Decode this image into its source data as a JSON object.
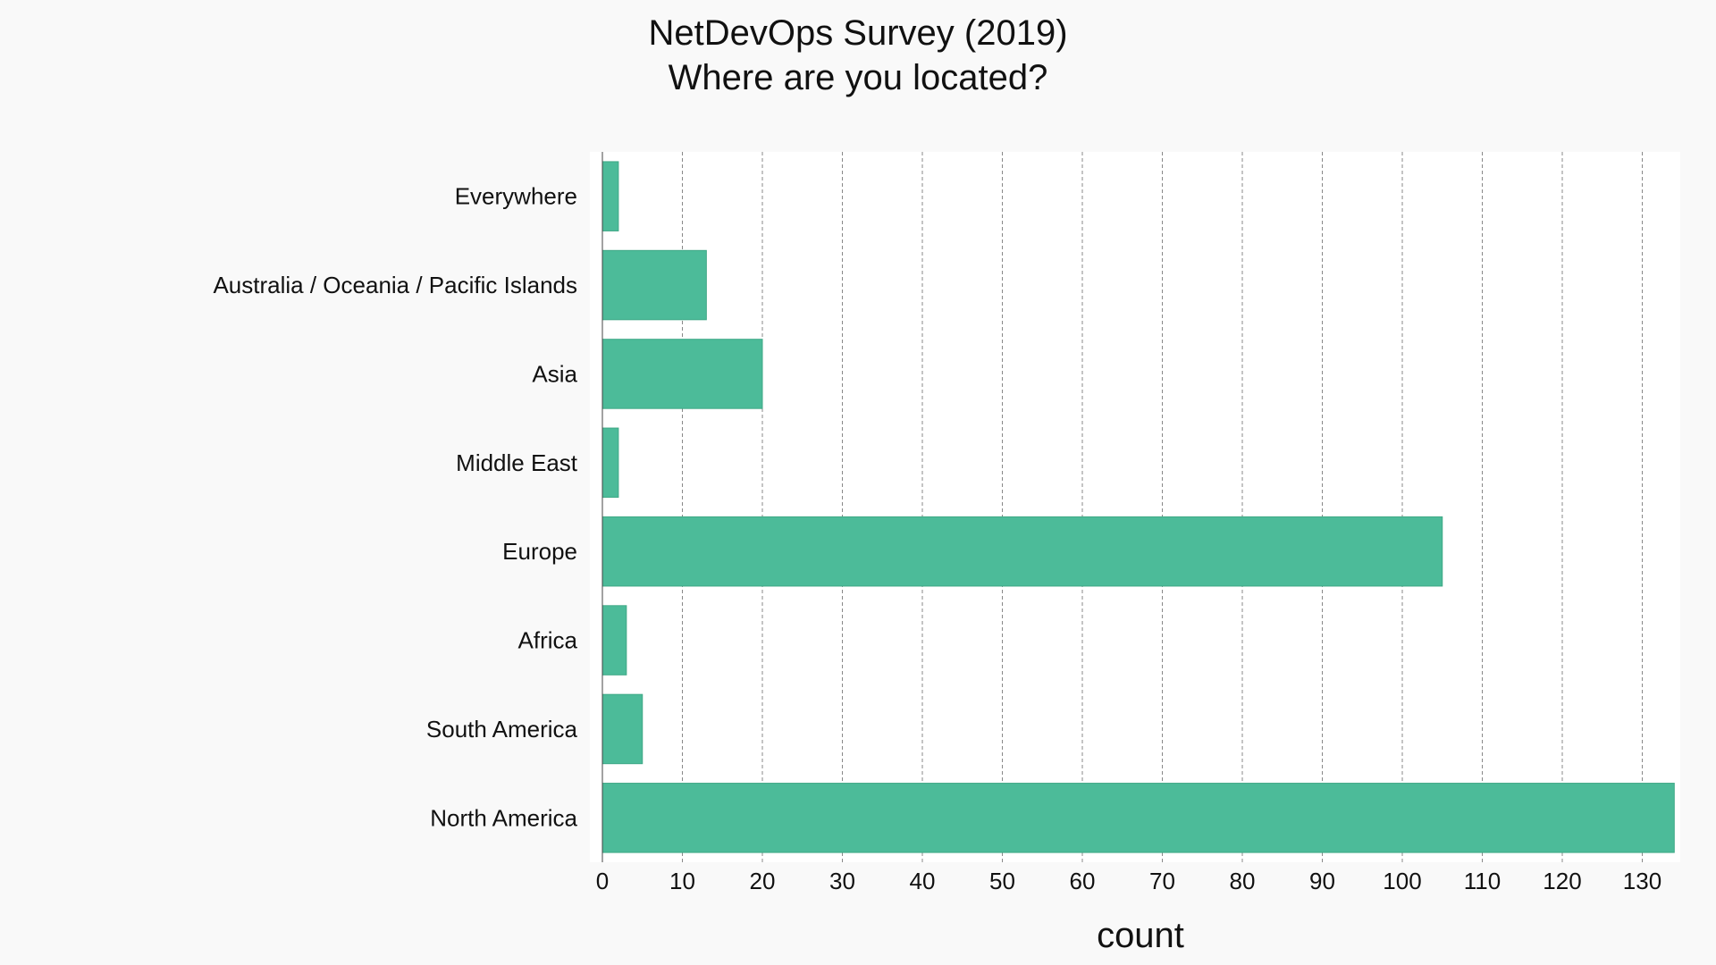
{
  "chart_data": {
    "type": "bar",
    "orientation": "horizontal",
    "title": "NetDevOps Survey (2019)",
    "subtitle": "Where are you located?",
    "xlabel": "count",
    "ylabel": "",
    "categories": [
      "North America",
      "South America",
      "Africa",
      "Europe",
      "Middle East",
      "Asia",
      "Australia / Oceania / Pacific Islands",
      "Everywhere"
    ],
    "values": [
      134,
      5,
      3,
      105,
      2,
      20,
      13,
      2
    ],
    "xlim": [
      0,
      135
    ],
    "xticks": [
      0,
      10,
      20,
      30,
      40,
      50,
      60,
      70,
      80,
      90,
      100,
      110,
      120,
      130
    ],
    "grid": "vertical dashed",
    "colors": {
      "bar": "#4cbb99",
      "bar_edge": "#3fa886",
      "plot_background": "#ffffff",
      "page_background": "#f9f9f9",
      "grid": "#888888"
    }
  }
}
